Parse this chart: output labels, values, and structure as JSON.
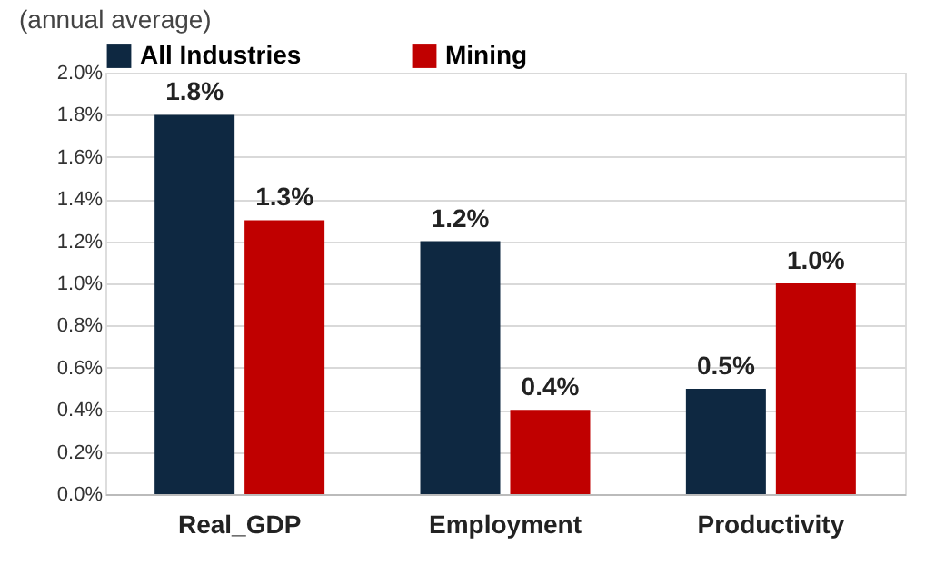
{
  "chart_data": {
    "type": "bar",
    "ylabel": "(annual average)",
    "categories": [
      "Real_GDP",
      "Employment",
      "Productivity"
    ],
    "series": [
      {
        "name": "All Industries",
        "color": "#0e2841",
        "values": [
          1.8,
          1.2,
          0.5
        ],
        "value_labels": [
          "1.8%",
          "1.2%",
          "0.5%"
        ]
      },
      {
        "name": "Mining",
        "color": "#c00000",
        "values": [
          1.3,
          0.4,
          1.0
        ],
        "value_labels": [
          "1.3%",
          "0.4%",
          "1.0%"
        ]
      }
    ],
    "ylim": [
      0,
      2.0
    ],
    "yticks": [
      {
        "value": 0,
        "label": "0.0%"
      },
      {
        "value": 0.2,
        "label": "0.2%"
      },
      {
        "value": 0.4,
        "label": "0.4%"
      },
      {
        "value": 0.6,
        "label": "0.6%"
      },
      {
        "value": 0.8,
        "label": "0.8%"
      },
      {
        "value": 1.0,
        "label": "1.0%"
      },
      {
        "value": 1.2,
        "label": "1.2%"
      },
      {
        "value": 1.4,
        "label": "1.4%"
      },
      {
        "value": 1.6,
        "label": "1.6%"
      },
      {
        "value": 1.8,
        "label": "1.8%"
      },
      {
        "value": 2.0,
        "label": "2.0%"
      }
    ],
    "grid": "y",
    "legend": "top"
  }
}
